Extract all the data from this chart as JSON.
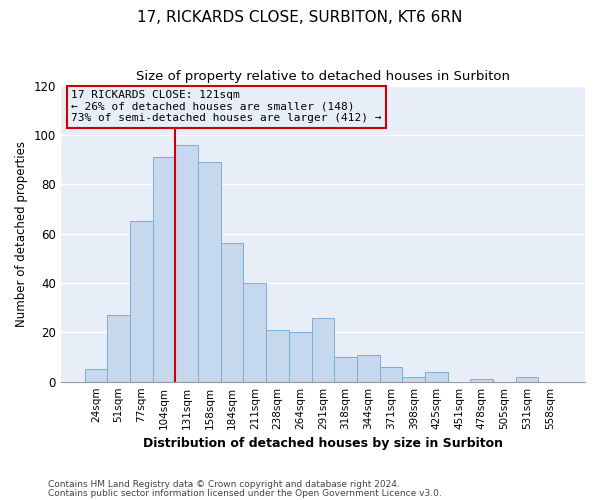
{
  "title": "17, RICKARDS CLOSE, SURBITON, KT6 6RN",
  "subtitle": "Size of property relative to detached houses in Surbiton",
  "xlabel": "Distribution of detached houses by size in Surbiton",
  "ylabel": "Number of detached properties",
  "footer_line1": "Contains HM Land Registry data © Crown copyright and database right 2024.",
  "footer_line2": "Contains public sector information licensed under the Open Government Licence v3.0.",
  "bin_labels": [
    "24sqm",
    "51sqm",
    "77sqm",
    "104sqm",
    "131sqm",
    "158sqm",
    "184sqm",
    "211sqm",
    "238sqm",
    "264sqm",
    "291sqm",
    "318sqm",
    "344sqm",
    "371sqm",
    "398sqm",
    "425sqm",
    "451sqm",
    "478sqm",
    "505sqm",
    "531sqm",
    "558sqm"
  ],
  "bar_values": [
    5,
    27,
    65,
    91,
    96,
    89,
    56,
    40,
    21,
    20,
    26,
    10,
    11,
    6,
    2,
    4,
    0,
    1,
    0,
    2,
    0
  ],
  "bar_color": "#c5d8ee",
  "bar_edge_color": "#7aafd4",
  "vline_color": "#cc0000",
  "vline_x_index": 4,
  "annotation_title": "17 RICKARDS CLOSE: 121sqm",
  "annotation_line1": "← 26% of detached houses are smaller (148)",
  "annotation_line2": "73% of semi-detached houses are larger (412) →",
  "annotation_box_color": "#cc0000",
  "ylim": [
    0,
    120
  ],
  "yticks": [
    0,
    20,
    40,
    60,
    80,
    100,
    120
  ],
  "plot_bg_color": "#e8eef8",
  "fig_bg_color": "#ffffff",
  "grid_color": "#ffffff",
  "title_fontsize": 11,
  "subtitle_fontsize": 9.5
}
